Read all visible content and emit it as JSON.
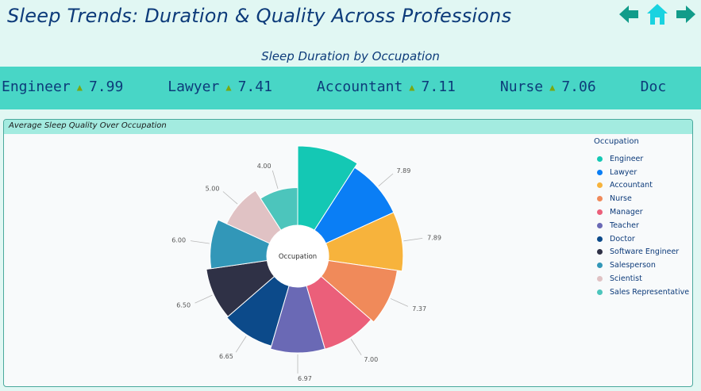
{
  "header": {
    "title": "Sleep Trends: Duration & Quality Across Professions",
    "subtitle": "Sleep Duration by Occupation"
  },
  "nav": {
    "back_color": "#129c8a",
    "home_color": "#19d3e0",
    "forward_color": "#129c8a"
  },
  "ticker": {
    "items": [
      {
        "label": "Engineer",
        "value": "7.99"
      },
      {
        "label": "Lawyer",
        "value": "7.41"
      },
      {
        "label": "Accountant",
        "value": "7.11"
      },
      {
        "label": "Nurse",
        "value": "7.06"
      },
      {
        "label": "Doc",
        "value": ""
      }
    ]
  },
  "panel": {
    "title": "Average Sleep Quality Over Occupation",
    "center_label": "Occupation"
  },
  "chart_data": {
    "type": "pie",
    "variant": "nightingale-rose",
    "legend_title": "Occupation",
    "legend_position": "top-right",
    "categories": [
      "Engineer",
      "Lawyer",
      "Accountant",
      "Nurse",
      "Manager",
      "Teacher",
      "Doctor",
      "Software Engineer",
      "Salesperson",
      "Scientist",
      "Sales Representative"
    ],
    "values": [
      8.41,
      7.89,
      7.89,
      7.37,
      7.0,
      6.97,
      6.65,
      6.5,
      6.0,
      5.0,
      4.0
    ],
    "data_labels": [
      "",
      "7.89",
      "7.89",
      "7.37",
      "7.00",
      "6.97",
      "6.65",
      "6.50",
      "6.00",
      "5.00",
      "4.00"
    ],
    "colors": [
      "#14c8b4",
      "#0a7ef5",
      "#f7b33c",
      "#f08a5a",
      "#eb5f7a",
      "#6a69b5",
      "#0c4a8a",
      "#2f3146",
      "#3297b8",
      "#e0c2c4",
      "#4cc5bc"
    ]
  }
}
